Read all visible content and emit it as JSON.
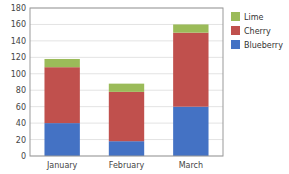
{
  "chart_data": {
    "type": "bar",
    "stacked": true,
    "categories": [
      "January",
      "February",
      "March"
    ],
    "series": [
      {
        "name": "Blueberry",
        "color": "#4472C4",
        "values": [
          40,
          18,
          60
        ]
      },
      {
        "name": "Cherry",
        "color": "#C0504D",
        "values": [
          68,
          60,
          90
        ]
      },
      {
        "name": "Lime",
        "color": "#9BBB59",
        "values": [
          10,
          10,
          10
        ]
      }
    ],
    "ylim": [
      0,
      180
    ],
    "yticks": [
      0,
      20,
      40,
      60,
      80,
      100,
      120,
      140,
      160,
      180
    ],
    "grid": true,
    "legend": "right"
  }
}
